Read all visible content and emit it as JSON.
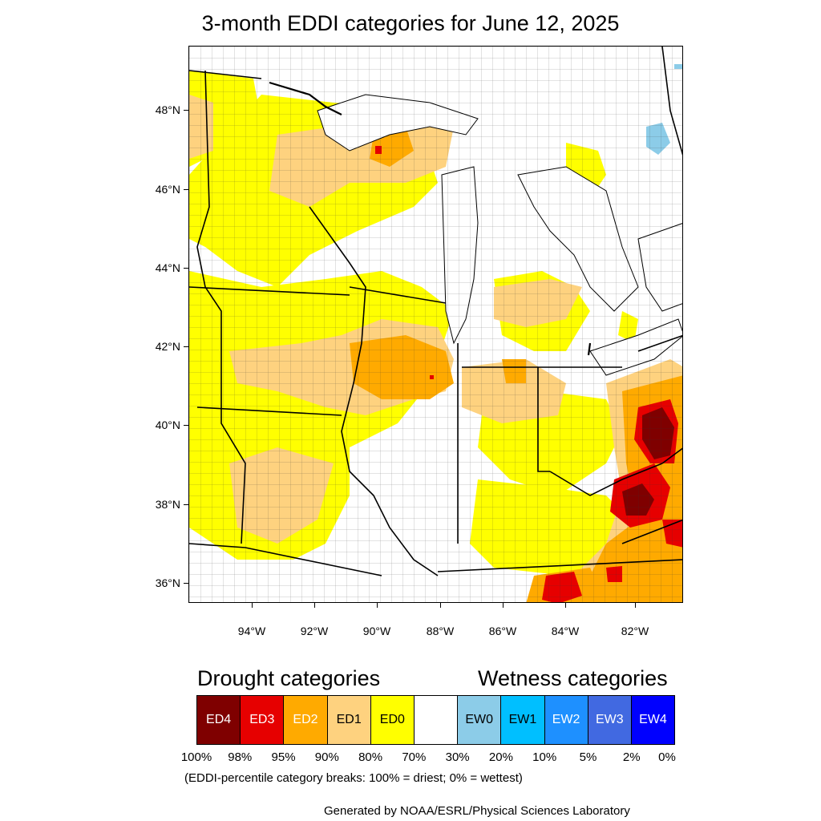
{
  "title": "3-month EDDI categories for June 12, 2025",
  "map": {
    "lat_labels": [
      "48°N",
      "46°N",
      "44°N",
      "42°N",
      "40°N",
      "38°N",
      "36°N"
    ],
    "lon_labels": [
      "94°W",
      "92°W",
      "90°W",
      "88°W",
      "86°W",
      "84°W",
      "82°W"
    ]
  },
  "legend": {
    "drought_heading": "Drought categories",
    "wetness_heading": "Wetness categories",
    "categories": [
      {
        "label": "ED4",
        "color": "#7f0000",
        "text_color": "#ffffff"
      },
      {
        "label": "ED3",
        "color": "#e60000",
        "text_color": "#ffffff"
      },
      {
        "label": "ED2",
        "color": "#ffaa00",
        "text_color": "#ffffff"
      },
      {
        "label": "ED1",
        "color": "#fed27f",
        "text_color": "#000000"
      },
      {
        "label": "ED0",
        "color": "#ffff00",
        "text_color": "#000000"
      },
      {
        "label": "",
        "color": "#ffffff",
        "text_color": "#000000"
      },
      {
        "label": "EW0",
        "color": "#8ccce8",
        "text_color": "#000000"
      },
      {
        "label": "EW1",
        "color": "#00bfff",
        "text_color": "#000000"
      },
      {
        "label": "EW2",
        "color": "#1e90ff",
        "text_color": "#ffffff"
      },
      {
        "label": "EW3",
        "color": "#4169e1",
        "text_color": "#ffffff"
      },
      {
        "label": "EW4",
        "color": "#0000ff",
        "text_color": "#ffffff"
      }
    ],
    "breaks": [
      "100%",
      "98%",
      "95%",
      "90%",
      "80%",
      "70%",
      "30%",
      "20%",
      "10%",
      "5%",
      "2%",
      "0%"
    ],
    "note": "(EDDI-percentile category breaks: 100% = driest; 0% = wettest)"
  },
  "credit": "Generated by NOAA/ESRL/Physical Sciences Laboratory"
}
